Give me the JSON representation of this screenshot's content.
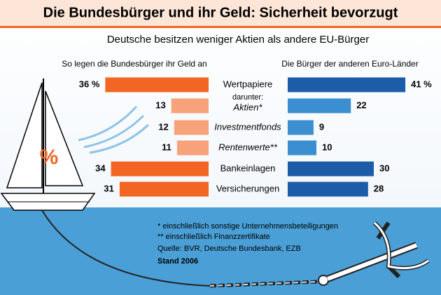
{
  "chart_data": {
    "type": "butterfly-bar",
    "title": "Die Bundesbürger und ihr Geld: Sicherheit bevorzugt",
    "subtitle": "Deutsche besitzen weniger Aktien als andere EU-Bürger",
    "categories": [
      "Wertpapiere",
      "Aktien*",
      "Investmentfonds",
      "Rentenwerte**",
      "Bankeinlagen",
      "Versicherungen"
    ],
    "category_note": "darunter:",
    "series": [
      {
        "name": "So legen die Bundesbürger ihr Geld an",
        "color": "#f26522",
        "colors": [
          "#f26522",
          "#f7a27a",
          "#f7a27a",
          "#f7a27a",
          "#f26522",
          "#f26522"
        ],
        "values": [
          36,
          13,
          12,
          11,
          34,
          31
        ],
        "value_labels": [
          "36 %",
          "13",
          "12",
          "11",
          "34",
          "31"
        ]
      },
      {
        "name": "Die Bürger der anderen Euro-Länder",
        "color": "#1c5ca8",
        "colors": [
          "#1c5ca8",
          "#3b8fd0",
          "#3b8fd0",
          "#3b8fd0",
          "#1c5ca8",
          "#1c5ca8"
        ],
        "values": [
          41,
          22,
          9,
          10,
          30,
          28
        ],
        "value_labels": [
          "41 %",
          "22",
          "9",
          "10",
          "30",
          "28"
        ]
      }
    ],
    "notes": [
      "*  einschließlich sonstige Unternehmensbeteiligungen",
      "** einschließlich Finanzzertifikate"
    ],
    "source": "Quelle: BVR, Deutsche Bundesbank, EZB",
    "date": "Stand 2006",
    "sail_label": "%"
  }
}
